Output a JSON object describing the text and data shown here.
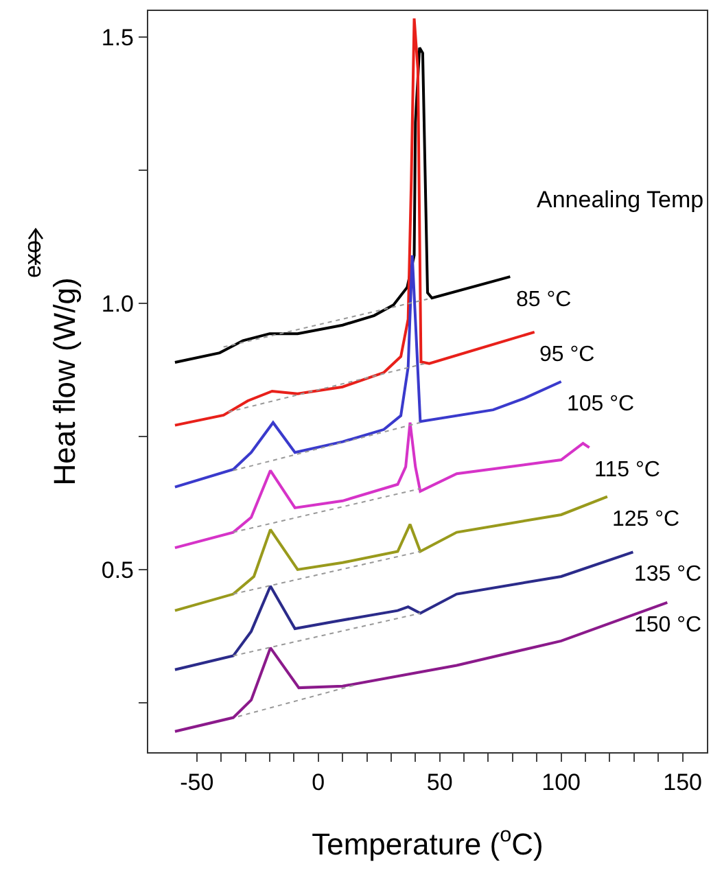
{
  "chart_data": {
    "type": "line",
    "xlabel": "Temperature ($^{o}$C)",
    "ylabel": "Heat flow (W/g)",
    "legend_title": "Annealing Temp",
    "annotations": [
      "exo"
    ],
    "xlim": [
      -70,
      160
    ],
    "xticks": [
      -50,
      {
        "value": -40,
        "label": null
      },
      {
        "value": -30,
        "label": null
      },
      {
        "value": -20,
        "label": null
      },
      {
        "value": -10,
        "label": null
      },
      0,
      {
        "value": 10,
        "label": null
      },
      {
        "value": 20,
        "label": null
      },
      {
        "value": 30,
        "label": null
      },
      {
        "value": 40,
        "label": null
      },
      50,
      {
        "value": 60,
        "label": null
      },
      {
        "value": 70,
        "label": null
      },
      {
        "value": 80,
        "label": null
      },
      {
        "value": 90,
        "label": null
      },
      100,
      {
        "value": 110,
        "label": null
      },
      {
        "value": 120,
        "label": null
      },
      {
        "value": 130,
        "label": null
      },
      {
        "value": 140,
        "label": null
      },
      150
    ],
    "ylim": [
      0.157,
      1.549
    ],
    "yticks": [
      {
        "value": 0.25,
        "label": null
      },
      {
        "value": 0.5,
        "label": "0.5"
      },
      {
        "value": 0.75,
        "label": null
      },
      {
        "value": 1,
        "label": "1.0"
      },
      {
        "value": 1.25,
        "label": null
      },
      {
        "value": 1.5,
        "label": "1.5"
      }
    ],
    "grid": false,
    "legend": false,
    "marker": "none",
    "line_style": "solid",
    "series": [
      {
        "name": "85 °C",
        "color": "#000000",
        "x": [
          -59,
          -40.6,
          -31,
          -20,
          -8.5,
          10,
          23,
          31,
          36.6,
          39.5,
          40,
          41.7,
          43,
          45,
          46.8,
          79
        ],
        "values": [
          0.889,
          0.907,
          0.93,
          0.943,
          0.943,
          0.959,
          0.977,
          0.997,
          1.03,
          1.09,
          1.34,
          1.48,
          1.47,
          1.02,
          1.01,
          1.05
        ]
      },
      {
        "name": "95 °C",
        "color": "#e8201a",
        "x": [
          -59,
          -39,
          -29,
          -19,
          -8.5,
          10,
          27,
          34,
          37,
          38.3,
          39.5,
          41,
          42.3,
          45.7,
          89
        ],
        "values": [
          0.771,
          0.79,
          0.817,
          0.835,
          0.83,
          0.843,
          0.87,
          0.9,
          0.97,
          1.23,
          1.535,
          1.44,
          0.89,
          0.887,
          0.946
        ]
      },
      {
        "name": "105 °C",
        "color": "#3a3acc",
        "x": [
          -59,
          -35,
          -27.6,
          -18.6,
          -9.6,
          10,
          27,
          34,
          37,
          38.7,
          40,
          42,
          72,
          85,
          100
        ],
        "values": [
          0.655,
          0.688,
          0.72,
          0.776,
          0.72,
          0.74,
          0.763,
          0.789,
          0.88,
          1.09,
          0.969,
          0.778,
          0.8,
          0.822,
          0.853
        ]
      },
      {
        "name": "115 °C",
        "color": "#d633c8",
        "x": [
          -59,
          -35,
          -27.6,
          -19.7,
          -9.6,
          10,
          32.7,
          36,
          37.8,
          40,
          42,
          57,
          100,
          109,
          111.6
        ],
        "values": [
          0.541,
          0.57,
          0.598,
          0.686,
          0.616,
          0.629,
          0.66,
          0.693,
          0.776,
          0.693,
          0.647,
          0.68,
          0.706,
          0.737,
          0.729
        ]
      },
      {
        "name": "125 °C",
        "color": "#999a1c",
        "x": [
          -59,
          -35,
          -26.5,
          -19.7,
          -8.5,
          10,
          32.7,
          37.8,
          42,
          57,
          100,
          119
        ],
        "values": [
          0.423,
          0.454,
          0.487,
          0.575,
          0.5,
          0.513,
          0.534,
          0.585,
          0.534,
          0.57,
          0.603,
          0.637
        ]
      },
      {
        "name": "135 °C",
        "color": "#2b2b8a",
        "x": [
          -59,
          -35,
          -27.6,
          -19.7,
          -9.6,
          6,
          32.7,
          37,
          42,
          57,
          100,
          129.6
        ],
        "values": [
          0.312,
          0.338,
          0.384,
          0.469,
          0.389,
          0.402,
          0.423,
          0.43,
          0.418,
          0.454,
          0.487,
          0.533
        ]
      },
      {
        "name": "150 °C",
        "color": "#8b1a8b",
        "x": [
          -59,
          -35,
          -27.6,
          -19.7,
          -8,
          10,
          57,
          100,
          143.7
        ],
        "values": [
          0.196,
          0.222,
          0.255,
          0.353,
          0.278,
          0.281,
          0.32,
          0.366,
          0.438
        ]
      },
      {
        "color": "#999999",
        "line_style": "dotted",
        "x": [
          -39,
          45
        ],
        "values": [
          0.918,
          1.008
        ]
      },
      {
        "color": "#999999",
        "line_style": "dotted",
        "x": [
          -37,
          44
        ],
        "values": [
          0.796,
          0.887
        ]
      },
      {
        "color": "#999999",
        "line_style": "dotted",
        "x": [
          -35,
          42
        ],
        "values": [
          0.686,
          0.776
        ]
      },
      {
        "color": "#999999",
        "line_style": "dotted",
        "x": [
          -35,
          42
        ],
        "values": [
          0.57,
          0.652
        ]
      },
      {
        "color": "#999999",
        "line_style": "dotted",
        "x": [
          -35,
          42
        ],
        "values": [
          0.454,
          0.534
        ]
      },
      {
        "color": "#999999",
        "line_style": "dotted",
        "x": [
          -35,
          42
        ],
        "values": [
          0.338,
          0.418
        ]
      },
      {
        "color": "#999999",
        "line_style": "dotted",
        "x": [
          -33,
          15
        ],
        "values": [
          0.224,
          0.283
        ]
      }
    ]
  }
}
